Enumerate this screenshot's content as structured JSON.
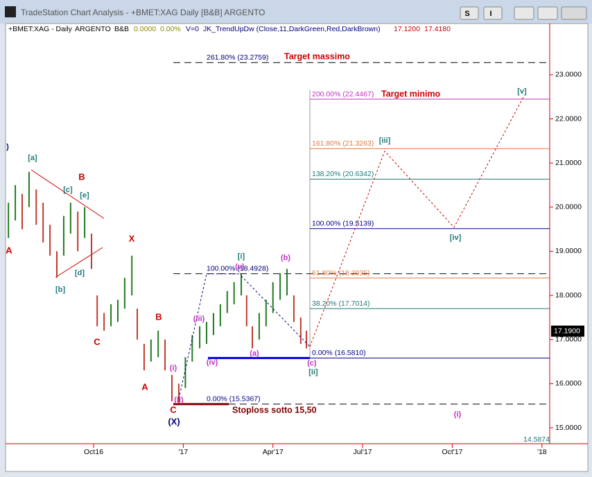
{
  "window_title": "TradeStation Chart Analysis - +BMET:XAG Daily [B&B] ARGENTO",
  "buttons": [
    "S",
    "I"
  ],
  "chart_data": {
    "type": "ohlc",
    "header": [
      "+BMET:XAG - Daily",
      "ARGENTO",
      "B&B",
      "0.0000",
      "0.00%",
      "V=0",
      "JK_TrendUpDw (Close,11,DarkGreen,Red,DarkBrown)",
      "17.1200",
      "17.4180"
    ],
    "x": [
      6.15,
      6.38,
      6.61,
      6.84,
      7.08,
      7.31,
      7.54,
      7.77,
      8.0,
      8.23,
      8.47,
      8.7,
      8.93,
      9.12,
      9.35,
      9.58,
      9.81,
      10.04,
      10.28,
      10.46,
      10.69,
      10.92,
      11.16,
      11.39,
      11.62,
      11.85,
      12.07,
      12.3,
      12.55,
      12.78,
      13.01,
      13.24,
      13.47,
      13.7,
      13.94,
      14.12,
      14.31,
      14.54,
      14.77,
      15.0,
      15.24,
      15.47,
      15.7,
      15.93,
      16.12
    ],
    "high": [
      20.1,
      20.5,
      20.3,
      20.8,
      20.4,
      20.1,
      19.6,
      19.0,
      19.8,
      20.1,
      19.9,
      20.0,
      19.4,
      18.0,
      17.6,
      17.8,
      17.9,
      18.4,
      18.9,
      17.7,
      16.9,
      17.0,
      17.2,
      17.0,
      16.2,
      16.0,
      16.6,
      17.1,
      17.3,
      17.4,
      17.6,
      17.8,
      18.1,
      18.3,
      18.5,
      18.0,
      17.3,
      17.6,
      17.9,
      18.3,
      18.5,
      18.6,
      18.0,
      17.5,
      17.2
    ],
    "low": [
      19.3,
      19.7,
      19.5,
      20.0,
      19.6,
      19.2,
      18.9,
      18.4,
      18.9,
      19.4,
      19.0,
      19.3,
      18.6,
      17.3,
      17.2,
      17.3,
      17.4,
      17.7,
      18.0,
      17.0,
      16.3,
      16.5,
      16.6,
      16.3,
      15.6,
      15.55,
      15.9,
      16.5,
      16.8,
      16.9,
      17.1,
      17.3,
      17.6,
      17.8,
      18.0,
      17.3,
      16.8,
      17.0,
      17.3,
      17.6,
      17.9,
      18.0,
      17.4,
      16.9,
      16.8
    ],
    "color_up": "#1f7a1f",
    "color_down": "#c0392b",
    "xlim": [
      6.1,
      24.26
    ],
    "xticks": [
      {
        "value": 9,
        "label": "Oct16"
      },
      {
        "value": 12,
        "label": "'17"
      },
      {
        "value": 15,
        "label": "Apr'17"
      },
      {
        "value": 18,
        "label": "Jul'17"
      },
      {
        "value": 21,
        "label": "Oct'17"
      },
      {
        "value": 24,
        "label": "'18"
      }
    ],
    "ylim": [
      14.67,
      23.94
    ],
    "yticks": [
      {
        "value": 15,
        "label": "15.0000"
      },
      {
        "value": 16,
        "label": "16.0000"
      },
      {
        "value": 17,
        "label": "17.0000"
      },
      {
        "value": 18,
        "label": "18.0000"
      },
      {
        "value": 19,
        "label": "19.0000"
      },
      {
        "value": 20,
        "label": "20.0000"
      },
      {
        "value": 21,
        "label": "21.0000"
      },
      {
        "value": 22,
        "label": "22.0000"
      },
      {
        "value": 23,
        "label": "23.0000"
      }
    ],
    "last_price": {
      "value": 17.19,
      "label": "17.1900"
    },
    "axis_low_label": "14.5874",
    "levels": [
      {
        "label": "261.80% (23.2759)",
        "value": 23.2759,
        "color": "#000080",
        "style": "dashed"
      },
      {
        "label": "200.00% (22.4467)",
        "value": 22.4467,
        "color": "#c030c0",
        "style": "solid"
      },
      {
        "label": "161.80% (21.3263)",
        "value": 21.3263,
        "color": "#e07a3a",
        "style": "solid"
      },
      {
        "label": "138.20% (20.6342)",
        "value": 20.6342,
        "color": "#207878",
        "style": "solid"
      },
      {
        "label": "100.00% (19.5139)",
        "value": 19.5139,
        "color": "#000080",
        "style": "solid"
      },
      {
        "label": "100.00% (18.4928)",
        "value": 18.4928,
        "color": "#000080",
        "style": "dashed"
      },
      {
        "label": "61.80% (18.3935)",
        "value": 18.3935,
        "color": "#e07a3a",
        "style": "solid"
      },
      {
        "label": "38.20% (17.7014)",
        "value": 17.7014,
        "color": "#207878",
        "style": "solid"
      },
      {
        "label": "0.00% (16.5810)",
        "value": 16.581,
        "color": "#000080",
        "style": "solid"
      },
      {
        "label": "0.00% (15.5367)",
        "value": 15.5367,
        "color": "#000080",
        "style": "dashed"
      }
    ],
    "annotations": [
      {
        "text": "Target massimo",
        "color": "#cc0000"
      },
      {
        "text": "Target minimo",
        "color": "#cc0000"
      },
      {
        "text": "Stoploss  sotto 15,50",
        "color": "#800000"
      },
      {
        "text": "[a]",
        "color": "#207878"
      },
      {
        "text": "B",
        "color": "#cc0000"
      },
      {
        "text": "[c]",
        "color": "#207878"
      },
      {
        "text": "[e]",
        "color": "#207878"
      },
      {
        "text": "[b]",
        "color": "#207878"
      },
      {
        "text": "[d]",
        "color": "#207878"
      },
      {
        "text": "C",
        "color": "#cc0000"
      },
      {
        "text": "A",
        "color": "#cc0000"
      },
      {
        "text": "X",
        "color": "#cc0000"
      },
      {
        "text": "B",
        "color": "#cc0000"
      },
      {
        "text": "A",
        "color": "#cc0000"
      },
      {
        "text": "C",
        "color": "#cc0000"
      },
      {
        "text": "(X)",
        "color": "#000080"
      },
      {
        "text": ")",
        "color": "#000080"
      },
      {
        "text": "(i)",
        "color": "#c030c0"
      },
      {
        "text": "(iii)",
        "color": "#c030c0"
      },
      {
        "text": "(iv)",
        "color": "#c030c0"
      },
      {
        "text": "(ii)",
        "color": "#c030c0"
      },
      {
        "text": "[i]",
        "color": "#207878"
      },
      {
        "text": "(v)",
        "color": "#c030c0"
      },
      {
        "text": "(a)",
        "color": "#c030c0"
      },
      {
        "text": "(b)",
        "color": "#c030c0"
      },
      {
        "text": "(c)",
        "color": "#c030c0"
      },
      {
        "text": "[ii]",
        "color": "#207878"
      },
      {
        "text": "[iii]",
        "color": "#207878"
      },
      {
        "text": "[iv]",
        "color": "#207878"
      },
      {
        "text": "[v]",
        "color": "#207878"
      },
      {
        "text": "(i)",
        "color": "#c030c0"
      }
    ]
  }
}
